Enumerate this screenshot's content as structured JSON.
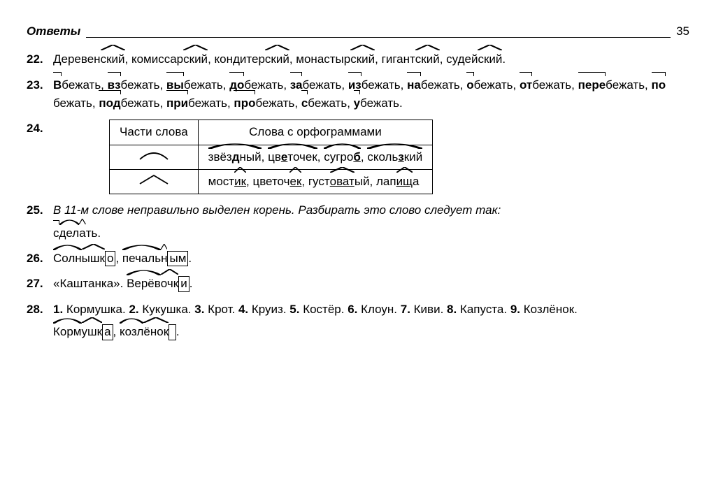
{
  "header": {
    "title": "Ответы",
    "page": "35"
  },
  "items": {
    "i22": {
      "num": "22.",
      "words": [
        {
          "pre": "Деревен",
          "suf": "ский"
        },
        {
          "pre": "комиссар",
          "suf": "ский"
        },
        {
          "pre": "кондитер",
          "suf": "ский"
        },
        {
          "pre": "монастыр",
          "suf": "ский"
        },
        {
          "pre": "гигант",
          "suf": "ский"
        },
        {
          "pre": "судей",
          "suf": "ский"
        }
      ]
    },
    "i23": {
      "num": "23.",
      "words": [
        {
          "p": "В",
          "r": "бежать"
        },
        {
          "p": "вз",
          "r": "бежать"
        },
        {
          "p": "вы",
          "r": "бежать"
        },
        {
          "p": "до",
          "r": "бежать"
        },
        {
          "p": "за",
          "r": "бежать"
        },
        {
          "p": "из",
          "r": "бежать"
        },
        {
          "p": "на",
          "r": "бежать"
        },
        {
          "p": "о",
          "r": "бежать"
        },
        {
          "p": "от",
          "r": "бежать"
        },
        {
          "p": "пере",
          "r": "бежать"
        },
        {
          "p": "по",
          "r": "бежать"
        },
        {
          "p": "под",
          "r": "бежать"
        },
        {
          "p": "при",
          "r": "бежать"
        },
        {
          "p": "про",
          "r": "бежать"
        },
        {
          "p": "с",
          "r": "бежать"
        },
        {
          "p": "у",
          "r": "бежать"
        }
      ]
    },
    "i24": {
      "num": "24.",
      "table": {
        "header": [
          "Части слова",
          "Слова с орфограммами"
        ],
        "row1": {
          "symbol": "arc",
          "cells": [
            {
              "plain": "звёз",
              "u": "д",
              "plain2": "ный"
            },
            {
              "plain": "цв",
              "u": "е",
              "plain2": "точек"
            },
            {
              "plain": "сугро",
              "u": "б",
              "plain2": ""
            },
            {
              "plain": "сколь",
              "u": "з",
              "plain2": "кий"
            }
          ]
        },
        "row2": {
          "symbol": "hat",
          "cells": [
            {
              "a": "мост",
              "b": "ик"
            },
            {
              "a": "цветоч",
              "b": "ек"
            },
            {
              "a": "густ",
              "b": "оват",
              "c": "ый"
            },
            {
              "a": "лап",
              "b": "ищ",
              "c": "а"
            }
          ]
        }
      }
    },
    "i25": {
      "num": "25.",
      "text": "В 11-м слове неправильно выделен корень. Разбирать это слово следует так:",
      "word": {
        "pre": "с",
        "root": "дел",
        "suf": "а",
        "end": "ть"
      }
    },
    "i26": {
      "num": "26.",
      "w1": {
        "root": "Солн",
        "suf": "ышк",
        "end": "о"
      },
      "w2": {
        "root": "печаль",
        "suf": "н",
        "end": "ым"
      }
    },
    "i27": {
      "num": "27.",
      "lead": "«Каштанка».",
      "w": {
        "root": "Верёв",
        "suf": "очк",
        "end": "и"
      }
    },
    "i28": {
      "num": "28.",
      "list": [
        {
          "n": "1.",
          "w": "Кормушка."
        },
        {
          "n": "2.",
          "w": "Кукушка."
        },
        {
          "n": "3.",
          "w": "Крот."
        },
        {
          "n": "4.",
          "w": "Круиз."
        },
        {
          "n": "5.",
          "w": "Костёр."
        },
        {
          "n": "6.",
          "w": "Клоун."
        },
        {
          "n": "7.",
          "w": "Киви."
        },
        {
          "n": "8.",
          "w": "Капуста."
        },
        {
          "n": "9.",
          "w": "Козлёнок."
        }
      ],
      "w1": {
        "root": "Корм",
        "suf": "ушк",
        "end": "а"
      },
      "w2": {
        "root": "козл",
        "suf": "ёнок",
        "end": ""
      }
    }
  },
  "style": {
    "font_family": "Arial",
    "base_fontsize": 17,
    "line_height": 1.55,
    "color": "#000000",
    "background": "#ffffff",
    "stroke": "#000000",
    "stroke_width": 1.6,
    "box_border": 1.5,
    "table_border": 1.5
  }
}
